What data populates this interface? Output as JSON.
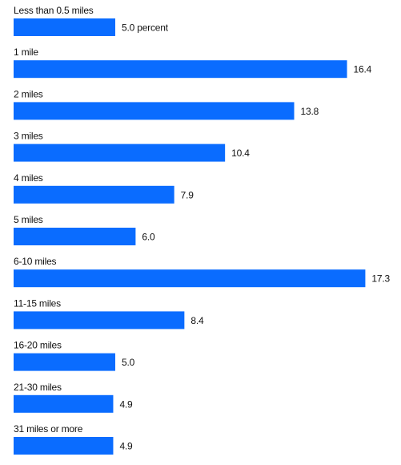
{
  "chart_data": {
    "type": "bar",
    "orientation": "horizontal",
    "categories": [
      "Less than 0.5 miles",
      "1 mile",
      "2 miles",
      "3 miles",
      "4 miles",
      "5 miles",
      "6-10 miles",
      "11-15 miles",
      "16-20 miles",
      "21-30 miles",
      "31 miles or more"
    ],
    "values": [
      5.0,
      16.4,
      13.8,
      10.4,
      7.9,
      6.0,
      17.3,
      8.4,
      5.0,
      4.9,
      4.9
    ],
    "value_labels": [
      "5.0 percent",
      "16.4",
      "13.8",
      "10.4",
      "7.9",
      "6.0",
      "17.3",
      "8.4",
      "5.0",
      "4.9",
      "4.9"
    ],
    "bar_color": "#0a6cff",
    "title": "",
    "xlabel": "",
    "ylabel": "",
    "grid": false,
    "legend": "none"
  }
}
